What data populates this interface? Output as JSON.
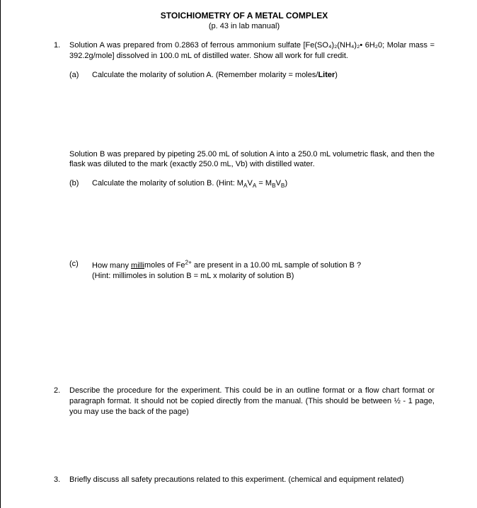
{
  "title": "STOICHIOMETRY OF A METAL COMPLEX",
  "subtitle": "(p. 43 in lab manual)",
  "q1": {
    "num": "1.",
    "intro": "Solution A was prepared from 0.2863 of ferrous ammonium sulfate [Fe(SO₄)₂(NH₄)₂• 6H₂0; Molar mass = 392.2g/mole] dissolved in 100.0 mL of distilled water.  Show all work for full credit.",
    "a": {
      "label": "(a)",
      "text_pre": "Calculate the molarity of solution A.  (Remember molarity = moles/",
      "text_bold": "Liter",
      "text_post": ")"
    },
    "b_intro": "Solution B was prepared by pipeting 25.00 mL of solution A into a 250.0 mL volumetric flask, and then the flask was diluted to the mark (exactly 250.0 mL, Vb) with distilled water.",
    "b": {
      "label": "(b)",
      "text": "Calculate the molarity of solution B. (Hint: MAVA = MBVB)"
    },
    "c": {
      "label": "(c)",
      "line1_pre": "How many ",
      "line1_underline": "milli",
      "line1_post": "moles of Fe²⁺ are present in a 10.00 mL sample of solution B ?",
      "line2": "(Hint:  millimoles in solution B = mL x molarity of solution B)"
    }
  },
  "q2": {
    "num": "2.",
    "text": "Describe the procedure for the experiment.  This could be in an outline format or a flow chart format or paragraph format.  It should not be copied directly from the manual. (This should be between ½ - 1 page, you may use the back of the page)"
  },
  "q3": {
    "num": "3.",
    "text": "Briefly discuss all safety precautions related to this experiment.  (chemical and equipment related)"
  }
}
